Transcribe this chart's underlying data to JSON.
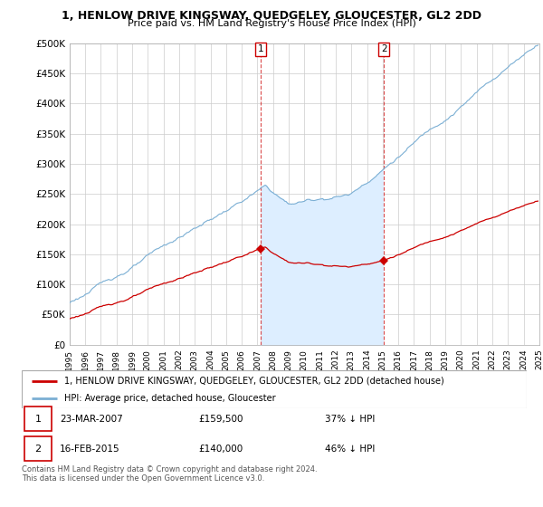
{
  "title": "1, HENLOW DRIVE KINGSWAY, QUEDGELEY, GLOUCESTER, GL2 2DD",
  "subtitle": "Price paid vs. HM Land Registry's House Price Index (HPI)",
  "ylim": [
    0,
    500000
  ],
  "yticks": [
    0,
    50000,
    100000,
    150000,
    200000,
    250000,
    300000,
    350000,
    400000,
    450000,
    500000
  ],
  "ytick_labels": [
    "£0",
    "£50K",
    "£100K",
    "£150K",
    "£200K",
    "£250K",
    "£300K",
    "£350K",
    "£400K",
    "£450K",
    "£500K"
  ],
  "sale1_x": 2007.208,
  "sale1_price": 159500,
  "sale2_x": 2015.083,
  "sale2_price": 140000,
  "line1_color": "#cc0000",
  "line2_color": "#7bafd4",
  "fill_color": "#ddeeff",
  "grid_color": "#cccccc",
  "legend_line1": "1, HENLOW DRIVE KINGSWAY, QUEDGELEY, GLOUCESTER, GL2 2DD (detached house)",
  "legend_line2": "HPI: Average price, detached house, Gloucester",
  "footnote": "Contains HM Land Registry data © Crown copyright and database right 2024.\nThis data is licensed under the Open Government Licence v3.0.",
  "table_row1_date": "23-MAR-2007",
  "table_row1_price": "£159,500",
  "table_row1_pct": "37% ↓ HPI",
  "table_row2_date": "16-FEB-2015",
  "table_row2_price": "£140,000",
  "table_row2_pct": "46% ↓ HPI"
}
